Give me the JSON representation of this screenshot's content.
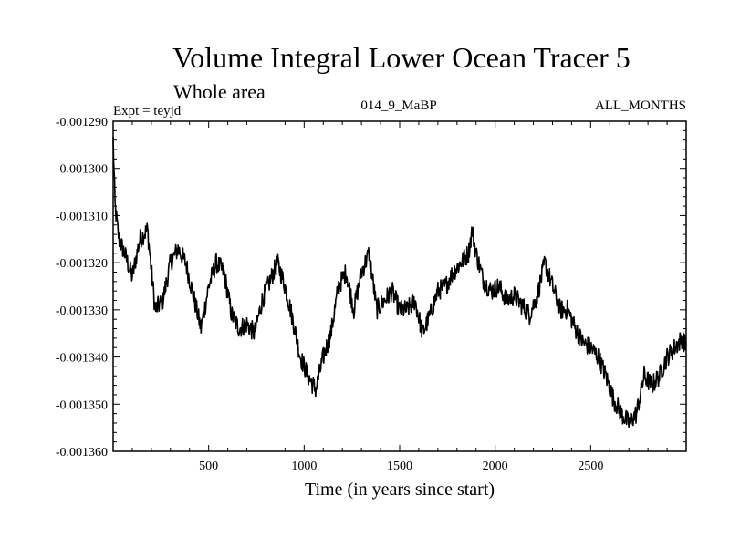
{
  "chart_data": {
    "type": "line",
    "title": "Volume Integral Lower Ocean Tracer 5",
    "subtitle": "Whole area",
    "experiment": "Expt = teyjd",
    "run_label": "014_9_MaBP",
    "period_label": "ALL_MONTHS",
    "xlabel": "Time (in years since start)",
    "ylabel": "",
    "xlim": [
      0,
      3000
    ],
    "ylim": [
      -0.00136,
      -0.00129
    ],
    "x_ticks": [
      500,
      1000,
      1500,
      2000,
      2500
    ],
    "x_tick_labels": [
      "500",
      "1000",
      "1500",
      "2000",
      "2500"
    ],
    "y_ticks": [
      -0.00129,
      -0.0013,
      -0.00131,
      -0.00132,
      -0.00133,
      -0.00134,
      -0.00135,
      -0.00136
    ],
    "y_tick_labels": [
      "-0.001290",
      "-0.001300",
      "-0.001310",
      "-0.001320",
      "-0.001330",
      "-0.001340",
      "-0.001350",
      "-0.001360"
    ],
    "line_color": "#000000",
    "series": [
      {
        "name": "Volume Integral Lower Ocean Tracer 5",
        "x": [
          0,
          10,
          30,
          60,
          100,
          140,
          180,
          220,
          260,
          300,
          340,
          380,
          420,
          460,
          500,
          540,
          580,
          620,
          660,
          700,
          740,
          780,
          820,
          860,
          900,
          940,
          980,
          1020,
          1060,
          1100,
          1140,
          1180,
          1220,
          1260,
          1300,
          1340,
          1380,
          1420,
          1460,
          1500,
          1540,
          1580,
          1620,
          1660,
          1700,
          1740,
          1780,
          1820,
          1860,
          1880,
          1900,
          1940,
          1980,
          2020,
          2060,
          2100,
          2140,
          2180,
          2220,
          2260,
          2300,
          2340,
          2380,
          2420,
          2460,
          2500,
          2540,
          2580,
          2620,
          2660,
          2700,
          2740,
          2780,
          2820,
          2860,
          2900,
          2940,
          2980,
          3000
        ],
        "y": [
          -0.001294,
          -0.001308,
          -0.001315,
          -0.001318,
          -0.001323,
          -0.001315,
          -0.001313,
          -0.00133,
          -0.001328,
          -0.00132,
          -0.001317,
          -0.00132,
          -0.001327,
          -0.001334,
          -0.001325,
          -0.00132,
          -0.001322,
          -0.001331,
          -0.001334,
          -0.001333,
          -0.001335,
          -0.001328,
          -0.001324,
          -0.00132,
          -0.001325,
          -0.001332,
          -0.00134,
          -0.001344,
          -0.001347,
          -0.00134,
          -0.001335,
          -0.001325,
          -0.001322,
          -0.00133,
          -0.001322,
          -0.001318,
          -0.00133,
          -0.001328,
          -0.001326,
          -0.00133,
          -0.00133,
          -0.001328,
          -0.001335,
          -0.001331,
          -0.001326,
          -0.001325,
          -0.001322,
          -0.00132,
          -0.001318,
          -0.001313,
          -0.001318,
          -0.001324,
          -0.001326,
          -0.001325,
          -0.001328,
          -0.001327,
          -0.001329,
          -0.001331,
          -0.001327,
          -0.00132,
          -0.001325,
          -0.00133,
          -0.00133,
          -0.001334,
          -0.001337,
          -0.001338,
          -0.00134,
          -0.001344,
          -0.001349,
          -0.001352,
          -0.001354,
          -0.001352,
          -0.001344,
          -0.001346,
          -0.001344,
          -0.00134,
          -0.001338,
          -0.001336,
          -0.001338
        ]
      }
    ]
  }
}
